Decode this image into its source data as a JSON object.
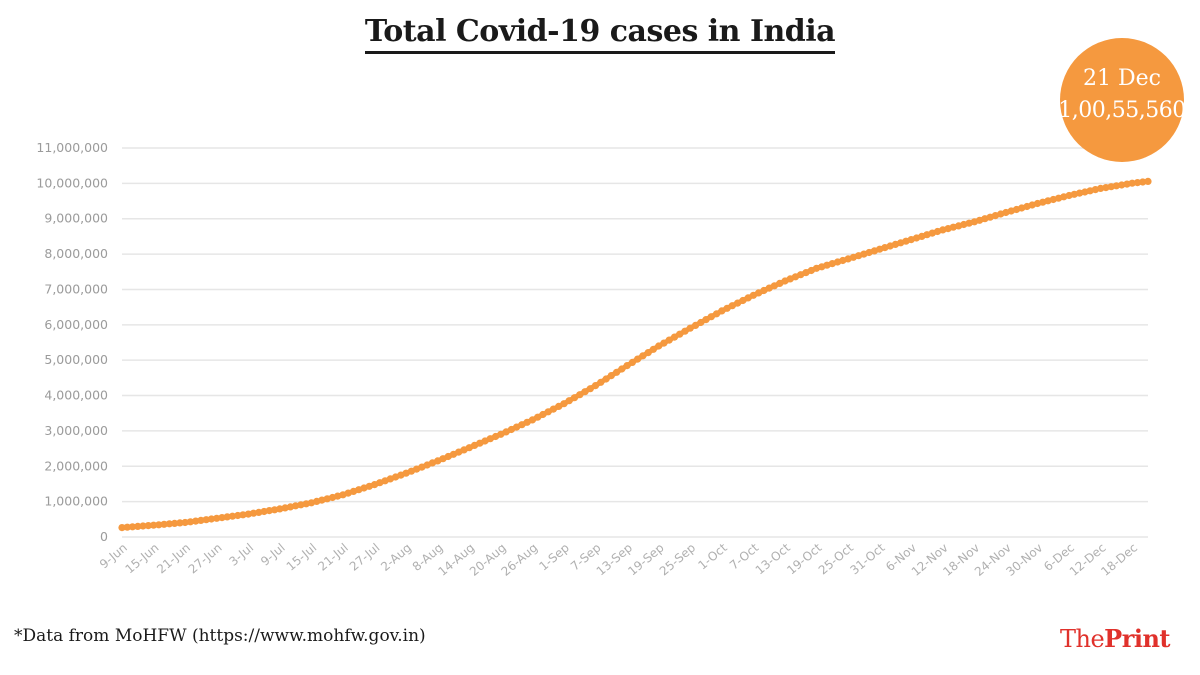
{
  "chart_data": {
    "type": "line",
    "title": "Total Covid-19 cases in India",
    "xlabel": "",
    "ylabel": "",
    "ylim": [
      0,
      11000000
    ],
    "y_ticks": [
      {
        "value": 0,
        "label": "0"
      },
      {
        "value": 1000000,
        "label": "1,000,000"
      },
      {
        "value": 2000000,
        "label": "2,000,000"
      },
      {
        "value": 3000000,
        "label": "3,000,000"
      },
      {
        "value": 4000000,
        "label": "4,000,000"
      },
      {
        "value": 5000000,
        "label": "5,000,000"
      },
      {
        "value": 6000000,
        "label": "6,000,000"
      },
      {
        "value": 7000000,
        "label": "7,000,000"
      },
      {
        "value": 8000000,
        "label": "8,000,000"
      },
      {
        "value": 9000000,
        "label": "9,000,000"
      },
      {
        "value": 10000000,
        "label": "10,000,000"
      },
      {
        "value": 11000000,
        "label": "11,000,000"
      }
    ],
    "x_tick_labels": [
      "9-Jun",
      "15-Jun",
      "21-Jun",
      "27-Jun",
      "3-Jul",
      "9-Jul",
      "15-Jul",
      "21-Jul",
      "27-Jul",
      "2-Aug",
      "8-Aug",
      "14-Aug",
      "20-Aug",
      "26-Aug",
      "1-Sep",
      "7-Sep",
      "13-Sep",
      "19-Sep",
      "25-Sep",
      "1-Oct",
      "7-Oct",
      "13-Oct",
      "19-Oct",
      "25-Oct",
      "31-Oct",
      "6-Nov",
      "12-Nov",
      "18-Nov",
      "24-Nov",
      "30-Nov",
      "6-Dec",
      "12-Dec",
      "18-Dec"
    ],
    "grid": true,
    "legend": "none",
    "line_color": "#f5993f",
    "series": [
      {
        "x": [
          "9-Jun",
          "15-Jun",
          "21-Jun",
          "27-Jun",
          "3-Jul",
          "9-Jul",
          "15-Jul",
          "21-Jul",
          "27-Jul",
          "2-Aug",
          "8-Aug",
          "14-Aug",
          "20-Aug",
          "26-Aug",
          "1-Sep",
          "7-Sep",
          "13-Sep",
          "19-Sep",
          "25-Sep",
          "1-Oct",
          "7-Oct",
          "13-Oct",
          "19-Oct",
          "25-Oct",
          "31-Oct",
          "6-Nov",
          "12-Nov",
          "18-Nov",
          "24-Nov",
          "30-Nov",
          "6-Dec",
          "12-Dec",
          "18-Dec",
          "21-Dec"
        ],
        "values": [
          266000,
          333000,
          411000,
          529000,
          648000,
          794000,
          968000,
          1193000,
          1483000,
          1803000,
          2153000,
          2526000,
          2905000,
          3311000,
          3769000,
          4280000,
          4846000,
          5400000,
          5903000,
          6394000,
          6835000,
          7239000,
          7597000,
          7864000,
          8137000,
          8411000,
          8683000,
          8912000,
          9177000,
          9431000,
          9657000,
          9857000,
          10004000,
          10055560
        ]
      }
    ],
    "annotation": {
      "date_label": "21 Dec",
      "value_label": "1,00,55,560"
    }
  },
  "footer": {
    "source": "*Data from MoHFW (https://www.mohfw.gov.in)",
    "logo_prefix": "The",
    "logo_suffix": "Print"
  }
}
